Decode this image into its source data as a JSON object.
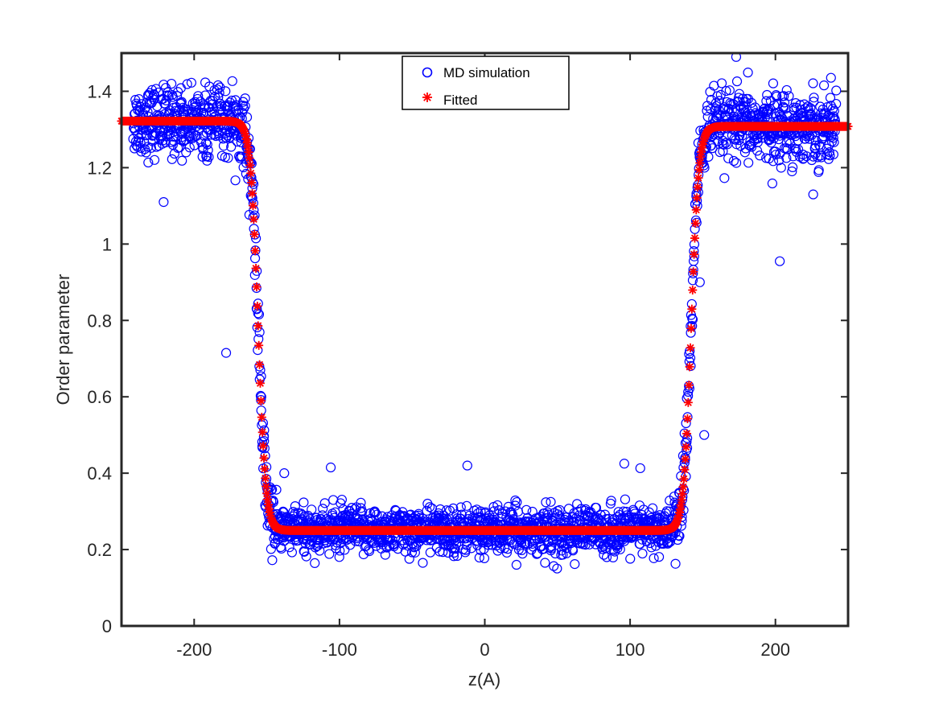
{
  "chart_data": {
    "type": "scatter",
    "xlabel": "z(A)",
    "ylabel": "Order parameter",
    "xlim": [
      -250,
      250
    ],
    "ylim": [
      0,
      1.5
    ],
    "xticks": [
      -200,
      -100,
      0,
      100,
      200
    ],
    "yticks": [
      0,
      0.2,
      0.4,
      0.6,
      0.8,
      1,
      1.2,
      1.4
    ],
    "xtick_labels": [
      "-200",
      "-100",
      "0",
      "100",
      "200"
    ],
    "ytick_labels": [
      "0",
      "0.2",
      "0.4",
      "0.6",
      "0.8",
      "1",
      "1.2",
      "1.4"
    ],
    "grid": false,
    "legend_position": "top-center",
    "colors": {
      "md": "#0000ff",
      "fit": "#ff0000",
      "axes": "#262626"
    },
    "fit_model": {
      "low_plateau": 0.25,
      "left_plateau": 1.322,
      "right_plateau": 1.308,
      "left_center": -156,
      "right_center": 142,
      "width": 2.6
    },
    "md_outliers": [
      {
        "x": -178,
        "y": 0.715
      },
      {
        "x": -221,
        "y": 1.11
      },
      {
        "x": 203,
        "y": 0.955
      },
      {
        "x": 173,
        "y": 1.49
      },
      {
        "x": 151,
        "y": 0.5
      },
      {
        "x": 148,
        "y": 0.9
      },
      {
        "x": -138,
        "y": 0.4
      },
      {
        "x": -12,
        "y": 0.42
      },
      {
        "x": 96,
        "y": 0.425
      },
      {
        "x": -106,
        "y": 0.415
      },
      {
        "x": 107,
        "y": 0.413
      },
      {
        "x": 226,
        "y": 1.13
      }
    ],
    "series": [
      {
        "name": "MD simulation",
        "marker": "circle",
        "color": "#0000ff"
      },
      {
        "name": "Fitted",
        "marker": "asterisk",
        "color": "#ff0000"
      }
    ]
  }
}
